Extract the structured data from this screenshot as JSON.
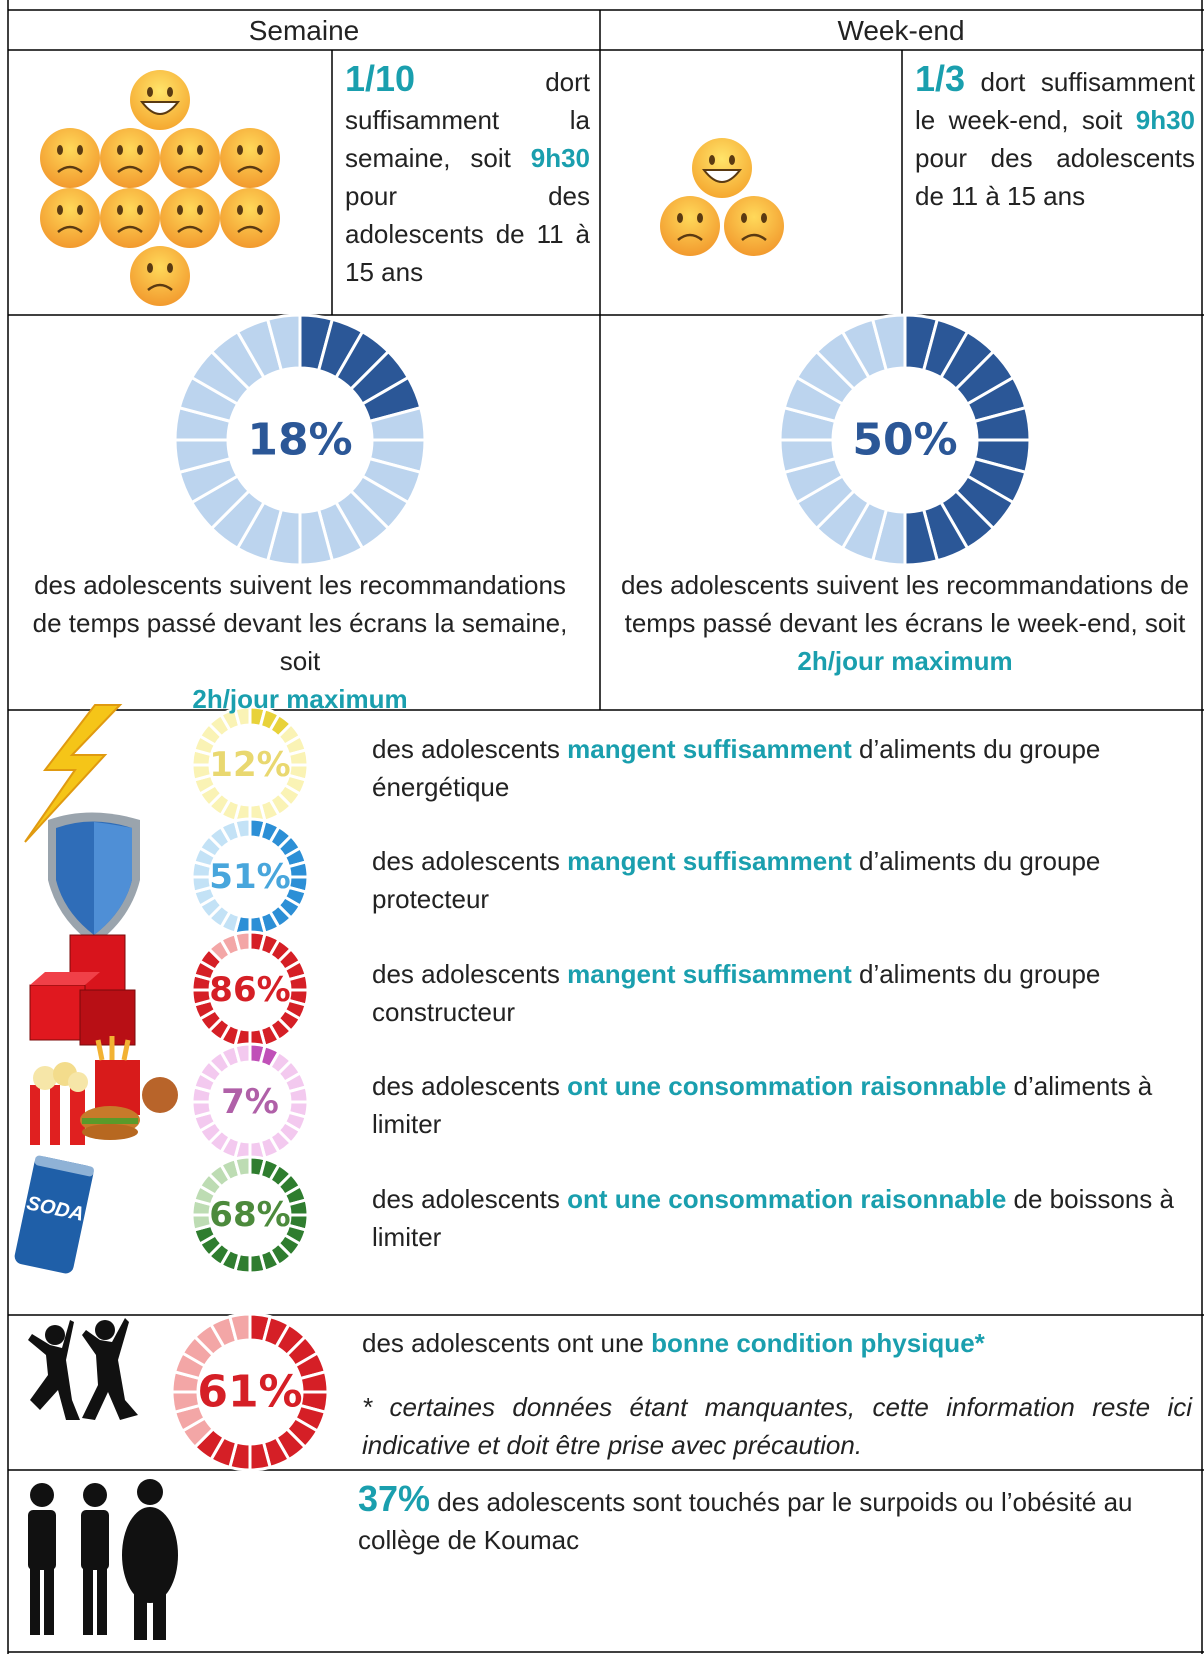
{
  "header": {
    "semaine": "Semaine",
    "weekend": "Week-end"
  },
  "sleep": [
    {
      "fraction": "1/10",
      "text1": "dort suffisamment la semaine, soit",
      "hours": "9h30",
      "text2": "pour des adolescents de 11 à 15 ans"
    },
    {
      "fraction": "1/3",
      "text1": "dort suffisamment le week-end, soit",
      "hours": "9h30",
      "text2": "pour des adolescents de 11 à 15 ans"
    }
  ],
  "screens": [
    {
      "percent": 18,
      "label": "18%",
      "text": "des adolescents suivent les recommandations de temps passé devant les écrans la semaine, soit",
      "highlight": "2h/jour maximum"
    },
    {
      "percent": 50,
      "label": "50%",
      "text": "des adolescents suivent les recommandations de temps passé devant les écrans le week-end, soit",
      "highlight": "2h/jour maximum"
    }
  ],
  "food": [
    {
      "percent": 12,
      "label": "12%",
      "text1": "des adolescents",
      "highlight": "mangent suffisamment",
      "text2": "d’aliments du groupe énergétique"
    },
    {
      "percent": 51,
      "label": "51%",
      "text1": "des adolescents",
      "highlight": "mangent suffisamment",
      "text2": "d’aliments du groupe protecteur"
    },
    {
      "percent": 86,
      "label": "86%",
      "text1": "des adolescents",
      "highlight": "mangent suffisamment",
      "text2": "d’aliments du groupe constructeur"
    },
    {
      "percent": 7,
      "label": "7%",
      "text1": "des adolescents",
      "highlight": "ont une consommation raisonnable",
      "text2": "d’aliments à limiter"
    },
    {
      "percent": 68,
      "label": "68%",
      "text1": "des adolescents",
      "highlight": "ont une consommation raisonnable",
      "text2": "de boissons à limiter",
      "icon_text": "SODA"
    }
  ],
  "fitness": {
    "percent": 61,
    "label": "61%",
    "text1": "des adolescents ont une",
    "highlight": "bonne condition physique*",
    "note": "* certaines données étant manquantes, cette information reste ici indicative et doit être prise avec précaution."
  },
  "weight": {
    "label": "37%",
    "text": "des adolescents sont touchés par le surpoids ou l’obésité au collège de Koumac"
  }
}
